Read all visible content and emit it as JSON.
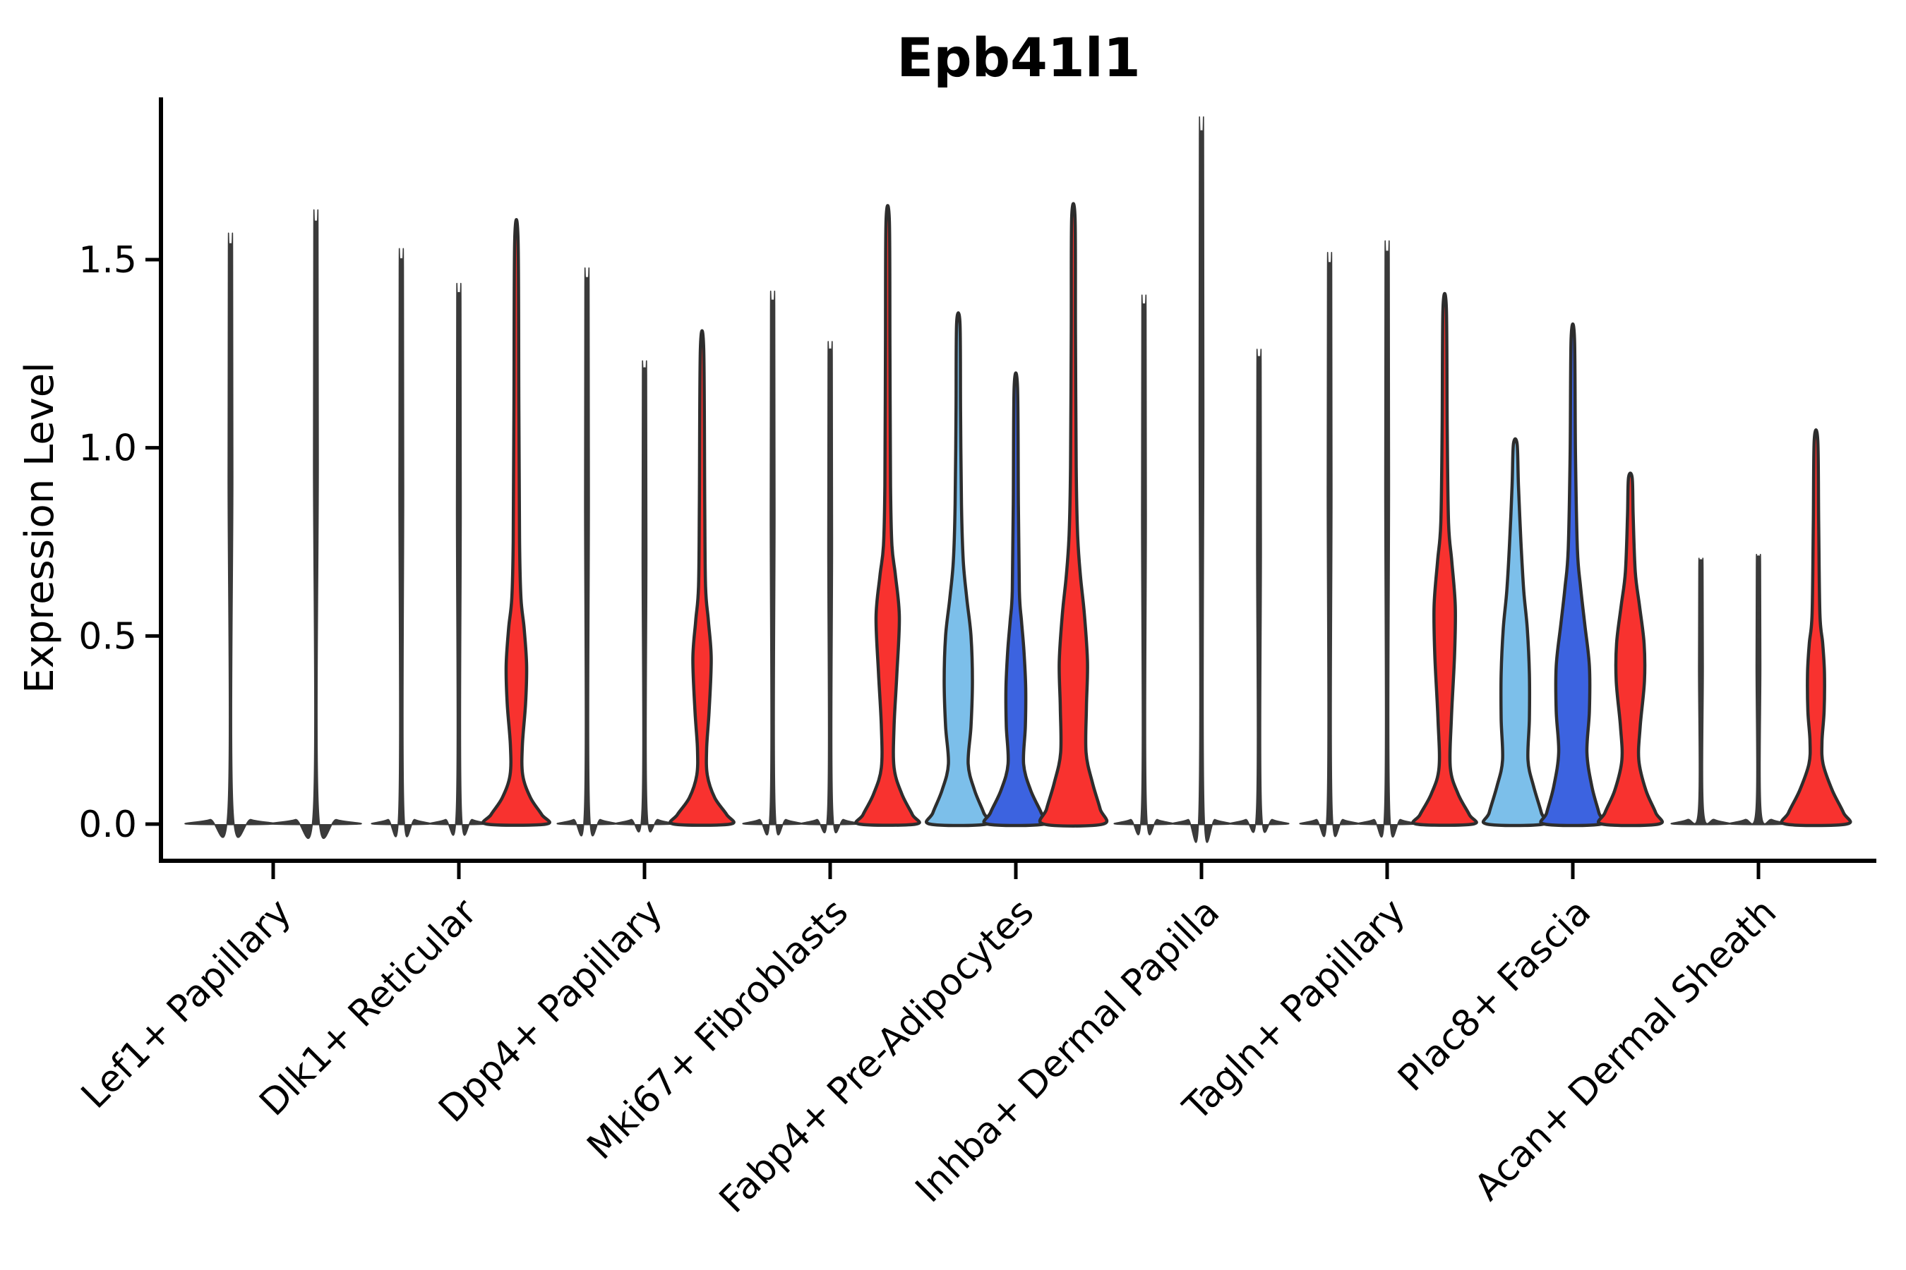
{
  "chart_data": {
    "type": "violin",
    "title": "Epb41l1",
    "ylabel": "Expression Level",
    "xlabel": "",
    "ylim": [
      0,
      1.93
    ],
    "yticks": [
      0,
      0.5,
      1.0,
      1.5
    ],
    "ytick_labels": [
      "0.0",
      "0.5",
      "1.0",
      "1.5"
    ],
    "grid": false,
    "legend": "none",
    "palette": {
      "red": "#F8322F",
      "light_blue": "#7CBFEA",
      "dark_blue": "#3C63E0",
      "thin_line": "#3A3A3A",
      "outline": "#2D2D2D",
      "axis": "#000000"
    },
    "categories": [
      "Lef1+ Papillary",
      "Dlk1+ Reticular",
      "Dpp4+ Papillary",
      "Mki67+ Fibroblasts",
      "Fabp4+ Pre-Adipocytes",
      "Inhba+ Dermal Papilla",
      "Tagln+ Papillary",
      "Plac8+ Fascia",
      "Acan+ Dermal Sheath"
    ],
    "groups": [
      {
        "category": "Lef1+ Papillary",
        "violins": [
          {
            "fill": "none",
            "max": 1.54
          },
          {
            "fill": "none",
            "max": 1.6
          }
        ]
      },
      {
        "category": "Dlk1+ Reticular",
        "violins": [
          {
            "fill": "none",
            "max": 1.5
          },
          {
            "fill": "none",
            "max": 1.41
          },
          {
            "fill": "red",
            "max": 1.55,
            "profile": [
              [
                0,
                42
              ],
              [
                0.025,
                36
              ],
              [
                0.07,
                20
              ],
              [
                0.13,
                9
              ],
              [
                0.21,
                8.5
              ],
              [
                0.32,
                13
              ],
              [
                0.42,
                14.5
              ],
              [
                0.52,
                11
              ],
              [
                0.6,
                6.5
              ],
              [
                0.75,
                4.5
              ],
              [
                1.1,
                3.5
              ],
              [
                1.55,
                2.4
              ]
            ]
          }
        ]
      },
      {
        "category": "Dpp4+ Papillary",
        "violins": [
          {
            "fill": "none",
            "max": 1.45
          },
          {
            "fill": "none",
            "max": 1.21
          },
          {
            "fill": "red",
            "max": 1.26,
            "profile": [
              [
                0,
                40
              ],
              [
                0.025,
                35
              ],
              [
                0.07,
                18
              ],
              [
                0.13,
                7.5
              ],
              [
                0.2,
                6.5
              ],
              [
                0.3,
                10
              ],
              [
                0.44,
                13
              ],
              [
                0.54,
                9
              ],
              [
                0.63,
                5
              ],
              [
                0.85,
                3.8
              ],
              [
                1.26,
                2.4
              ]
            ]
          }
        ]
      },
      {
        "category": "Mki67+ Fibroblasts",
        "violins": [
          {
            "fill": "none",
            "max": 1.39
          },
          {
            "fill": "none",
            "max": 1.26
          },
          {
            "fill": "red",
            "max": 1.6,
            "profile": [
              [
                0,
                40
              ],
              [
                0.025,
                35
              ],
              [
                0.08,
                20
              ],
              [
                0.15,
                9
              ],
              [
                0.26,
                9
              ],
              [
                0.4,
                13
              ],
              [
                0.55,
                16.5
              ],
              [
                0.66,
                11
              ],
              [
                0.74,
                6
              ],
              [
                0.9,
                4
              ],
              [
                1.25,
                3.2
              ],
              [
                1.6,
                2.4
              ]
            ]
          }
        ]
      },
      {
        "category": "Fabp4+ Pre-Adipocytes",
        "violins": [
          {
            "fill": "light_blue",
            "max": 1.33,
            "profile": [
              [
                0,
                40
              ],
              [
                0.03,
                36
              ],
              [
                0.09,
                23
              ],
              [
                0.16,
                14
              ],
              [
                0.26,
                18
              ],
              [
                0.38,
                20
              ],
              [
                0.5,
                18
              ],
              [
                0.6,
                12
              ],
              [
                0.7,
                7
              ],
              [
                0.85,
                4.5
              ],
              [
                1.1,
                3.2
              ],
              [
                1.33,
                2.4
              ]
            ]
          },
          {
            "fill": "dark_blue",
            "max": 1.16,
            "profile": [
              [
                0,
                40
              ],
              [
                0.03,
                36
              ],
              [
                0.09,
                21
              ],
              [
                0.16,
                11
              ],
              [
                0.26,
                13.5
              ],
              [
                0.36,
                14
              ],
              [
                0.46,
                11.5
              ],
              [
                0.54,
                8
              ],
              [
                0.62,
                5
              ],
              [
                0.85,
                3.6
              ],
              [
                1.16,
                2.4
              ]
            ]
          },
          {
            "fill": "red",
            "max": 1.61,
            "profile": [
              [
                0,
                42
              ],
              [
                0.04,
                38
              ],
              [
                0.11,
                27
              ],
              [
                0.19,
                18
              ],
              [
                0.31,
                18.5
              ],
              [
                0.43,
                20
              ],
              [
                0.56,
                15.5
              ],
              [
                0.66,
                10
              ],
              [
                0.77,
                6
              ],
              [
                0.95,
                4
              ],
              [
                1.3,
                3
              ],
              [
                1.61,
                2.4
              ]
            ]
          }
        ]
      },
      {
        "category": "Inhba+ Dermal Papilla",
        "violins": [
          {
            "fill": "none",
            "max": 1.38
          },
          {
            "fill": "none",
            "max": 1.84
          },
          {
            "fill": "none",
            "max": 1.24
          }
        ]
      },
      {
        "category": "Tagln+ Papillary",
        "violins": [
          {
            "fill": "none",
            "max": 1.49
          },
          {
            "fill": "none",
            "max": 1.52
          },
          {
            "fill": "red",
            "max": 1.37,
            "profile": [
              [
                0,
                40
              ],
              [
                0.025,
                35
              ],
              [
                0.08,
                19
              ],
              [
                0.15,
                8
              ],
              [
                0.28,
                9.5
              ],
              [
                0.45,
                14
              ],
              [
                0.58,
                15
              ],
              [
                0.7,
                10
              ],
              [
                0.8,
                5.5
              ],
              [
                1.05,
                3.6
              ],
              [
                1.37,
                2.4
              ]
            ]
          }
        ]
      },
      {
        "category": "Plac8+ Fascia",
        "violins": [
          {
            "fill": "light_blue",
            "max": 1.01,
            "profile": [
              [
                0,
                40
              ],
              [
                0.03,
                37
              ],
              [
                0.1,
                26
              ],
              [
                0.17,
                18
              ],
              [
                0.28,
                20
              ],
              [
                0.4,
                20
              ],
              [
                0.52,
                17
              ],
              [
                0.62,
                12
              ],
              [
                0.75,
                8
              ],
              [
                0.9,
                4.5
              ],
              [
                1.01,
                2.6
              ]
            ]
          },
          {
            "fill": "dark_blue",
            "max": 1.29,
            "profile": [
              [
                0,
                40
              ],
              [
                0.03,
                37
              ],
              [
                0.1,
                27
              ],
              [
                0.19,
                20
              ],
              [
                0.3,
                23.5
              ],
              [
                0.42,
                23.5
              ],
              [
                0.53,
                17
              ],
              [
                0.63,
                11
              ],
              [
                0.73,
                6.5
              ],
              [
                0.98,
                3.8
              ],
              [
                1.29,
                2.4
              ]
            ]
          },
          {
            "fill": "red",
            "max": 0.92,
            "profile": [
              [
                0,
                40
              ],
              [
                0.03,
                36
              ],
              [
                0.09,
                22
              ],
              [
                0.17,
                12
              ],
              [
                0.26,
                14
              ],
              [
                0.38,
                20
              ],
              [
                0.48,
                19.5
              ],
              [
                0.58,
                13
              ],
              [
                0.67,
                7
              ],
              [
                0.82,
                4
              ],
              [
                0.92,
                2.6
              ]
            ]
          }
        ]
      },
      {
        "category": "Acan+ Dermal Sheath",
        "violins": [
          {
            "fill": "none",
            "max": 0.7,
            "points": [
              0.53,
              0.38,
              0.32,
              0.29
            ]
          },
          {
            "fill": "none",
            "max": 0.71,
            "points": [
              0.57,
              0.55,
              0.5,
              0.43,
              0.33,
              0.31
            ]
          },
          {
            "fill": "red",
            "max": 1.02,
            "profile": [
              [
                0,
                43
              ],
              [
                0.03,
                39
              ],
              [
                0.09,
                23
              ],
              [
                0.16,
                10
              ],
              [
                0.22,
                8.5
              ],
              [
                0.3,
                11.5
              ],
              [
                0.4,
                12
              ],
              [
                0.48,
                9.5
              ],
              [
                0.56,
                5.5
              ],
              [
                0.8,
                3.8
              ],
              [
                1.02,
                2.5
              ]
            ]
          }
        ]
      }
    ]
  }
}
